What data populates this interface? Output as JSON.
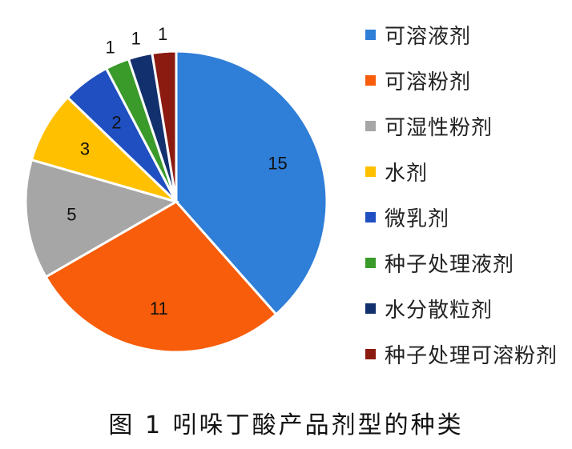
{
  "chart_data": {
    "type": "pie",
    "title": "",
    "categories": [
      "可溶液剂",
      "可溶粉剂",
      "可湿性粉剂",
      "水剂",
      "微乳剂",
      "种子处理液剂",
      "水分散粒剂",
      "种子处理可溶粉剂"
    ],
    "values": [
      15,
      11,
      5,
      3,
      2,
      1,
      1,
      1
    ],
    "colors": [
      "#2f7ed8",
      "#f75d0a",
      "#a6a6a6",
      "#ffc000",
      "#1f4fc0",
      "#3a9a2a",
      "#13306e",
      "#8b1a10"
    ],
    "start_angle_deg": 0,
    "direction": "clockwise",
    "legend_position": "right",
    "data_labels": [
      "15",
      "11",
      "5",
      "3",
      "2",
      "1",
      "1",
      "1"
    ]
  },
  "caption": "图 1  吲哚丁酸产品剂型的种类"
}
